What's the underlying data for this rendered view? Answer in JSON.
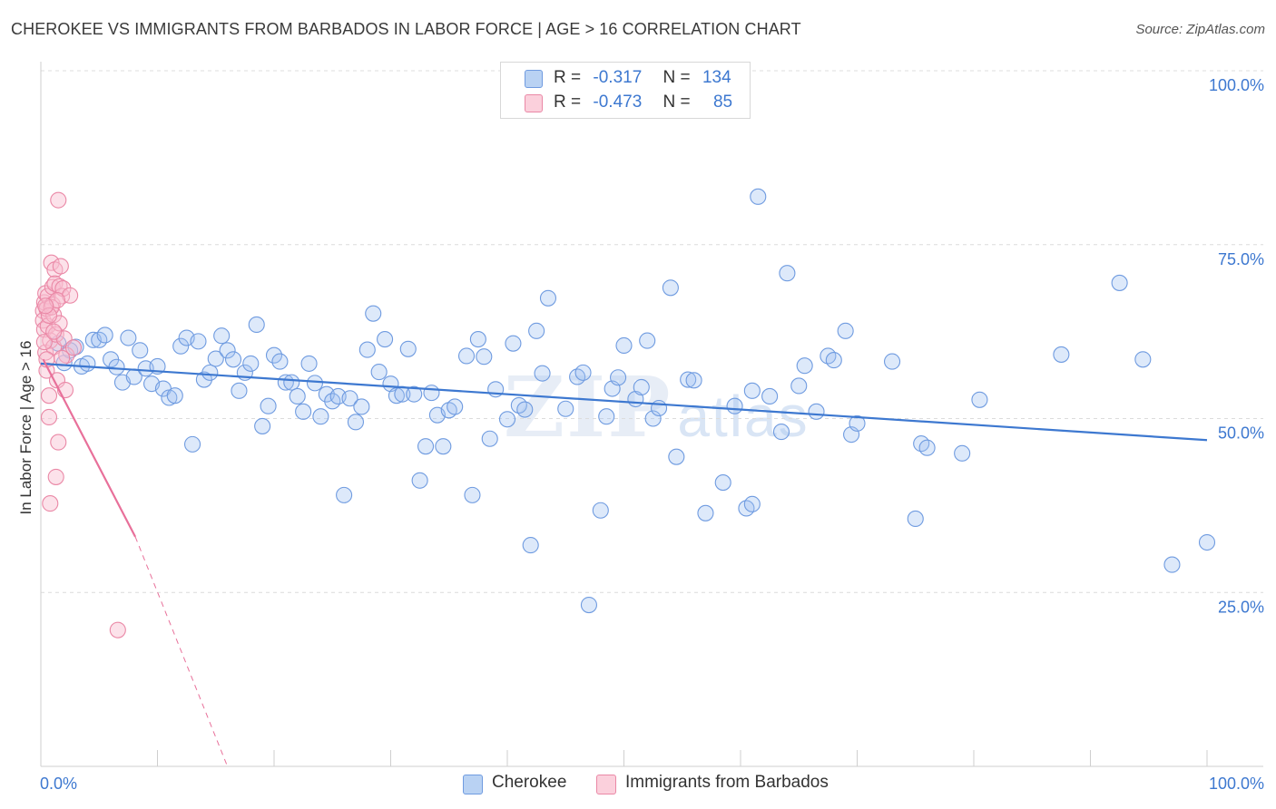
{
  "header": {
    "title": "CHEROKEE VS IMMIGRANTS FROM BARBADOS IN LABOR FORCE | AGE > 16 CORRELATION CHART",
    "source": "Source: ZipAtlas.com"
  },
  "watermark": {
    "zip": "ZIP",
    "atlas": "atlas"
  },
  "legend_stats": [
    {
      "r_label": "R =",
      "r_value": "-0.317",
      "n_label": "N =",
      "n_value": "134",
      "color": "#9dc1f0",
      "border": "#5a8fd8"
    },
    {
      "r_label": "R =",
      "r_value": "-0.473",
      "n_label": "N =",
      "n_value": "85",
      "color": "#f9bfd0",
      "border": "#e87a9c"
    }
  ],
  "bottom_legend": [
    {
      "label": "Cherokee",
      "color": "#b9d2f3",
      "border": "#6f9be0"
    },
    {
      "label": "Immigrants from Barbados",
      "color": "#fbd0dc",
      "border": "#ea88a6"
    }
  ],
  "chart_data": {
    "type": "scatter",
    "title": "CHEROKEE VS IMMIGRANTS FROM BARBADOS IN LABOR FORCE | AGE > 16 CORRELATION CHART",
    "xlabel": "",
    "ylabel": "In Labor Force | Age > 16",
    "xlim": [
      0,
      100
    ],
    "ylim": [
      0,
      100
    ],
    "x_tick_labels": [
      "0.0%",
      "100.0%"
    ],
    "y_ticks": [
      25,
      50,
      75,
      100
    ],
    "y_tick_labels": [
      "25.0%",
      "50.0%",
      "75.0%",
      "100.0%"
    ],
    "grid": true,
    "legend_placement": "bottom-center",
    "colors": {
      "cherokee": "#3d78d0",
      "barbados": "#e8709a"
    },
    "series": [
      {
        "name": "Cherokee",
        "trend": {
          "x": [
            0,
            100
          ],
          "y": [
            57.9,
            46.9
          ],
          "style": "solid"
        },
        "points": [
          [
            1.5,
            60.8
          ],
          [
            2.0,
            58.0
          ],
          [
            2.5,
            59.8
          ],
          [
            3.0,
            60.3
          ],
          [
            3.5,
            57.5
          ],
          [
            4.0,
            57.9
          ],
          [
            4.5,
            61.3
          ],
          [
            5.0,
            61.3
          ],
          [
            5.5,
            62.0
          ],
          [
            6.0,
            58.5
          ],
          [
            6.5,
            57.4
          ],
          [
            7.0,
            55.2
          ],
          [
            7.5,
            61.6
          ],
          [
            8.0,
            56.0
          ],
          [
            8.5,
            59.8
          ],
          [
            9.0,
            57.2
          ],
          [
            9.5,
            55.0
          ],
          [
            10.0,
            57.5
          ],
          [
            10.5,
            54.3
          ],
          [
            11.0,
            53.0
          ],
          [
            11.5,
            53.3
          ],
          [
            12.0,
            60.4
          ],
          [
            12.5,
            61.6
          ],
          [
            13.0,
            46.3
          ],
          [
            13.5,
            61.1
          ],
          [
            14.0,
            55.6
          ],
          [
            14.5,
            56.6
          ],
          [
            15.0,
            58.6
          ],
          [
            15.5,
            61.9
          ],
          [
            16.0,
            59.8
          ],
          [
            16.5,
            58.5
          ],
          [
            17.0,
            54.0
          ],
          [
            17.5,
            56.6
          ],
          [
            18.0,
            57.9
          ],
          [
            18.5,
            63.5
          ],
          [
            19.0,
            48.9
          ],
          [
            19.5,
            51.8
          ],
          [
            20.0,
            59.1
          ],
          [
            20.5,
            58.2
          ],
          [
            21.0,
            55.2
          ],
          [
            21.5,
            55.2
          ],
          [
            22.0,
            53.2
          ],
          [
            22.5,
            51.0
          ],
          [
            23.0,
            57.9
          ],
          [
            23.5,
            55.1
          ],
          [
            24.0,
            50.3
          ],
          [
            24.5,
            53.5
          ],
          [
            25.0,
            52.5
          ],
          [
            25.5,
            53.2
          ],
          [
            26.0,
            39.0
          ],
          [
            26.5,
            52.9
          ],
          [
            27.0,
            49.5
          ],
          [
            27.5,
            51.7
          ],
          [
            28.0,
            59.9
          ],
          [
            28.5,
            65.1
          ],
          [
            29.0,
            56.7
          ],
          [
            29.5,
            61.4
          ],
          [
            30.0,
            55.0
          ],
          [
            30.5,
            53.3
          ],
          [
            31.0,
            53.5
          ],
          [
            31.5,
            60.0
          ],
          [
            32.0,
            53.5
          ],
          [
            32.5,
            41.1
          ],
          [
            33.0,
            46.0
          ],
          [
            33.5,
            53.7
          ],
          [
            34.0,
            50.5
          ],
          [
            34.5,
            46.0
          ],
          [
            35.0,
            51.2
          ],
          [
            35.5,
            51.7
          ],
          [
            36.5,
            59.0
          ],
          [
            37.0,
            39.0
          ],
          [
            37.5,
            61.4
          ],
          [
            38.0,
            58.9
          ],
          [
            38.5,
            47.1
          ],
          [
            39.0,
            54.2
          ],
          [
            40.0,
            49.9
          ],
          [
            40.5,
            60.8
          ],
          [
            41.0,
            51.9
          ],
          [
            41.5,
            51.3
          ],
          [
            42.0,
            31.8
          ],
          [
            42.5,
            62.6
          ],
          [
            43.0,
            56.5
          ],
          [
            43.5,
            67.3
          ],
          [
            45.0,
            51.4
          ],
          [
            46.0,
            56.0
          ],
          [
            46.5,
            56.6
          ],
          [
            47.0,
            23.2
          ],
          [
            48.5,
            50.3
          ],
          [
            48.0,
            36.8
          ],
          [
            49.0,
            54.3
          ],
          [
            49.5,
            55.9
          ],
          [
            50.0,
            60.5
          ],
          [
            51.0,
            52.8
          ],
          [
            51.5,
            54.5
          ],
          [
            52.0,
            61.2
          ],
          [
            52.5,
            50.0
          ],
          [
            53.0,
            51.5
          ],
          [
            54.0,
            68.8
          ],
          [
            54.5,
            44.5
          ],
          [
            55.5,
            55.6
          ],
          [
            56.0,
            55.5
          ],
          [
            57.0,
            36.4
          ],
          [
            58.5,
            40.8
          ],
          [
            59.5,
            51.8
          ],
          [
            60.5,
            37.1
          ],
          [
            61.0,
            37.7
          ],
          [
            61.5,
            81.9
          ],
          [
            62.5,
            53.2
          ],
          [
            63.5,
            48.1
          ],
          [
            64.0,
            70.9
          ],
          [
            65.0,
            54.7
          ],
          [
            65.5,
            57.6
          ],
          [
            66.5,
            51.0
          ],
          [
            67.5,
            59.0
          ],
          [
            68.0,
            58.4
          ],
          [
            69.0,
            62.6
          ],
          [
            69.5,
            47.7
          ],
          [
            70.0,
            49.3
          ],
          [
            75.0,
            35.6
          ],
          [
            75.5,
            46.4
          ],
          [
            76.0,
            45.8
          ],
          [
            79.0,
            45.0
          ],
          [
            80.5,
            52.7
          ],
          [
            87.5,
            59.2
          ],
          [
            92.5,
            69.5
          ],
          [
            94.5,
            58.5
          ],
          [
            97.0,
            29.0
          ],
          [
            100.0,
            32.2
          ],
          [
            61.0,
            54.0
          ],
          [
            73.0,
            58.2
          ]
        ]
      },
      {
        "name": "Immigrants from Barbados",
        "trend": {
          "x": [
            0.2,
            8.1,
            16.0
          ],
          "y": [
            58.5,
            33.0,
            0.0
          ],
          "style": "solid-then-dashed"
        },
        "points": [
          [
            0.2,
            65.5
          ],
          [
            0.2,
            64.1
          ],
          [
            0.3,
            66.7
          ],
          [
            0.3,
            62.8
          ],
          [
            0.4,
            68.0
          ],
          [
            0.4,
            59.5
          ],
          [
            0.5,
            65.8
          ],
          [
            0.5,
            56.9
          ],
          [
            0.6,
            67.6
          ],
          [
            0.6,
            63.3
          ],
          [
            0.7,
            53.3
          ],
          [
            0.7,
            50.2
          ],
          [
            0.8,
            37.8
          ],
          [
            0.8,
            61.2
          ],
          [
            0.9,
            72.4
          ],
          [
            1.0,
            68.9
          ],
          [
            1.0,
            66.4
          ],
          [
            1.1,
            64.9
          ],
          [
            1.1,
            60.3
          ],
          [
            1.2,
            71.4
          ],
          [
            1.2,
            69.4
          ],
          [
            1.3,
            41.6
          ],
          [
            1.3,
            62.1
          ],
          [
            1.4,
            55.5
          ],
          [
            1.5,
            46.6
          ],
          [
            1.5,
            81.4
          ],
          [
            1.6,
            69.0
          ],
          [
            1.6,
            63.7
          ],
          [
            1.7,
            71.9
          ],
          [
            1.8,
            67.6
          ],
          [
            1.9,
            68.7
          ],
          [
            2.0,
            61.5
          ],
          [
            2.1,
            54.1
          ],
          [
            2.2,
            59.1
          ],
          [
            2.5,
            67.7
          ],
          [
            2.8,
            60.2
          ],
          [
            6.6,
            19.6
          ],
          [
            0.9,
            66.0
          ],
          [
            0.3,
            61.0
          ],
          [
            0.5,
            58.5
          ],
          [
            1.1,
            62.5
          ],
          [
            0.7,
            64.8
          ],
          [
            1.4,
            67.0
          ],
          [
            0.4,
            66.2
          ],
          [
            1.8,
            58.7
          ]
        ]
      }
    ]
  }
}
